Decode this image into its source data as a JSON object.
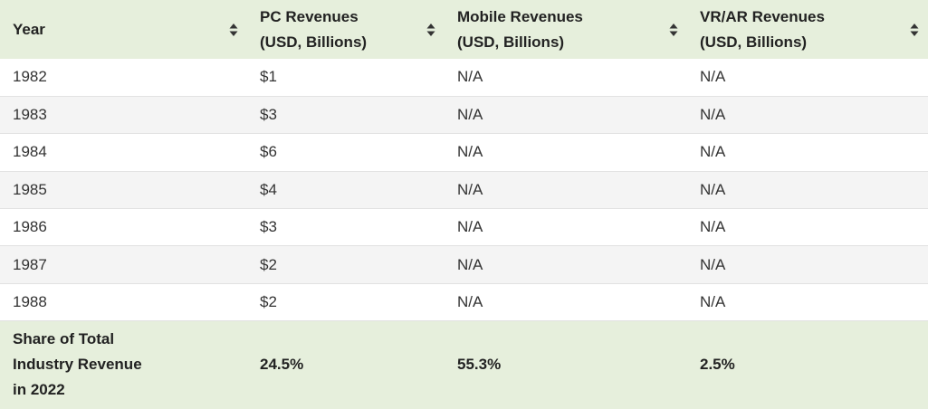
{
  "table": {
    "headers": [
      {
        "line1": "Year",
        "line2": ""
      },
      {
        "line1": "PC Revenues",
        "line2": "(USD, Billions)"
      },
      {
        "line1": "Mobile Revenues",
        "line2": "(USD, Billions)"
      },
      {
        "line1": "VR/AR Revenues",
        "line2": "(USD, Billions)"
      }
    ],
    "rows": [
      [
        "1982",
        "$1",
        "N/A",
        "N/A"
      ],
      [
        "1983",
        "$3",
        "N/A",
        "N/A"
      ],
      [
        "1984",
        "$6",
        "N/A",
        "N/A"
      ],
      [
        "1985",
        "$4",
        "N/A",
        "N/A"
      ],
      [
        "1986",
        "$3",
        "N/A",
        "N/A"
      ],
      [
        "1987",
        "$2",
        "N/A",
        "N/A"
      ],
      [
        "1988",
        "$2",
        "N/A",
        "N/A"
      ]
    ],
    "summary": {
      "label_line1": "Share of Total",
      "label_line2": "Industry Revenue",
      "label_line3": "in 2022",
      "pc": "24.5%",
      "mobile": "55.3%",
      "vrar": "2.5%"
    }
  },
  "icons": {
    "sort": "sort-icon"
  },
  "colors": {
    "header_bg": "#e6efdc",
    "alt_row_bg": "#f4f4f4",
    "border": "#e2e2e2"
  }
}
